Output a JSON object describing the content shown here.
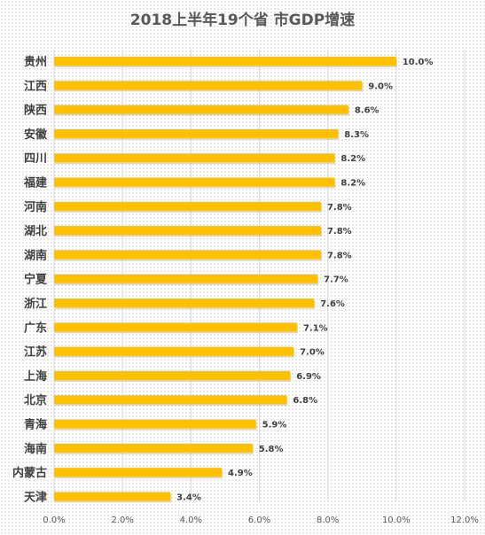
{
  "chart_data": {
    "type": "bar",
    "orientation": "horizontal",
    "title": "2018上半年19个省 市GDP增速",
    "categories": [
      "贵州",
      "江西",
      "陕西",
      "安徽",
      "四川",
      "福建",
      "河南",
      "湖北",
      "湖南",
      "宁夏",
      "浙江",
      "广东",
      "江苏",
      "上海",
      "北京",
      "青海",
      "海南",
      "内蒙古",
      "天津"
    ],
    "values": [
      10.0,
      9.0,
      8.6,
      8.3,
      8.2,
      8.2,
      7.8,
      7.8,
      7.8,
      7.7,
      7.6,
      7.1,
      7.0,
      6.9,
      6.8,
      5.9,
      5.8,
      4.9,
      3.4
    ],
    "value_labels": [
      "10.0%",
      "9.0%",
      "8.6%",
      "8.3%",
      "8.2%",
      "8.2%",
      "7.8%",
      "7.8%",
      "7.8%",
      "7.7%",
      "7.6%",
      "7.1%",
      "7.0%",
      "6.9%",
      "6.8%",
      "5.9%",
      "5.8%",
      "4.9%",
      "3.4%"
    ],
    "xlim": [
      0,
      12
    ],
    "x_ticks": [
      "0.0%",
      "2.0%",
      "4.0%",
      "6.0%",
      "8.0%",
      "10.0%",
      "12.0%"
    ],
    "x_tick_values": [
      0,
      2,
      4,
      6,
      8,
      10,
      12
    ],
    "grid": true,
    "legend": "none",
    "bar_color": "#FFC000",
    "bar_shadow_color": "#B7B7B7",
    "grid_color": "#D9D9D9"
  }
}
